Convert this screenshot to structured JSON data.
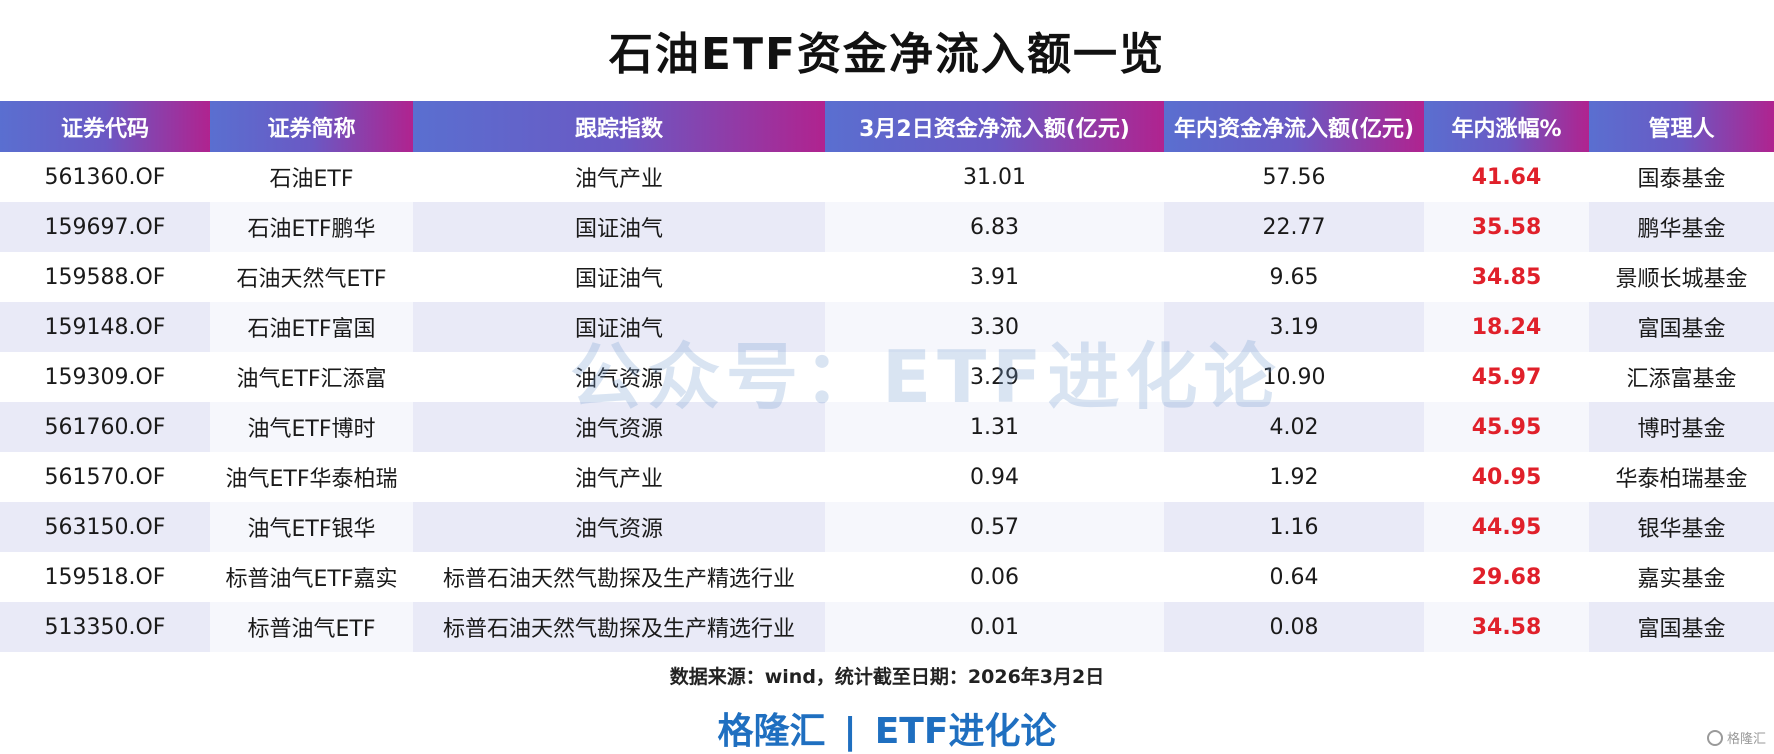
{
  "title": "石油ETF资金净流入额一览",
  "headers": [
    "证券代码",
    "证券简称",
    "跟踪指数",
    "3月2日资金净流入额(亿元)",
    "年内资金净流入额(亿元)",
    "年内涨幅%",
    "管理人"
  ],
  "rows": [
    [
      "561360.OF",
      "石油ETF",
      "油气产业",
      "31.01",
      "57.56",
      "41.64",
      "国泰基金"
    ],
    [
      "159697.OF",
      "石油ETF鹏华",
      "国证油气",
      "6.83",
      "22.77",
      "35.58",
      "鹏华基金"
    ],
    [
      "159588.OF",
      "石油天然气ETF",
      "国证油气",
      "3.91",
      "9.65",
      "34.85",
      "景顺长城基金"
    ],
    [
      "159148.OF",
      "石油ETF富国",
      "国证油气",
      "3.30",
      "3.19",
      "18.24",
      "富国基金"
    ],
    [
      "159309.OF",
      "油气ETF汇添富",
      "油气资源",
      "3.29",
      "10.90",
      "45.97",
      "汇添富基金"
    ],
    [
      "561760.OF",
      "油气ETF博时",
      "油气资源",
      "1.31",
      "4.02",
      "45.95",
      "博时基金"
    ],
    [
      "561570.OF",
      "油气ETF华泰柏瑞",
      "油气产业",
      "0.94",
      "1.92",
      "40.95",
      "华泰柏瑞基金"
    ],
    [
      "563150.OF",
      "油气ETF银华",
      "油气资源",
      "0.57",
      "1.16",
      "44.95",
      "银华基金"
    ],
    [
      "159518.OF",
      "标普油气ETF嘉实",
      "标普石油天然气勘探及生产精选行业",
      "0.06",
      "0.64",
      "29.68",
      "嘉实基金"
    ],
    [
      "513350.OF",
      "标普油气ETF",
      "标普石油天然气勘探及生产精选行业",
      "0.01",
      "0.08",
      "34.58",
      "富国基金"
    ]
  ],
  "watermark": "公众号：ETF进化论",
  "source": "数据来源：wind，统计截至日期：2026年3月2日",
  "footer": {
    "left": "格隆汇",
    "sep": "|",
    "right": "ETF进化论"
  },
  "corner_logo": "格隆汇",
  "colors": {
    "header_start": "#5a6fd0",
    "header_end": "#b0238f",
    "positive": "#e0202a",
    "footer": "#1f6fc0"
  }
}
